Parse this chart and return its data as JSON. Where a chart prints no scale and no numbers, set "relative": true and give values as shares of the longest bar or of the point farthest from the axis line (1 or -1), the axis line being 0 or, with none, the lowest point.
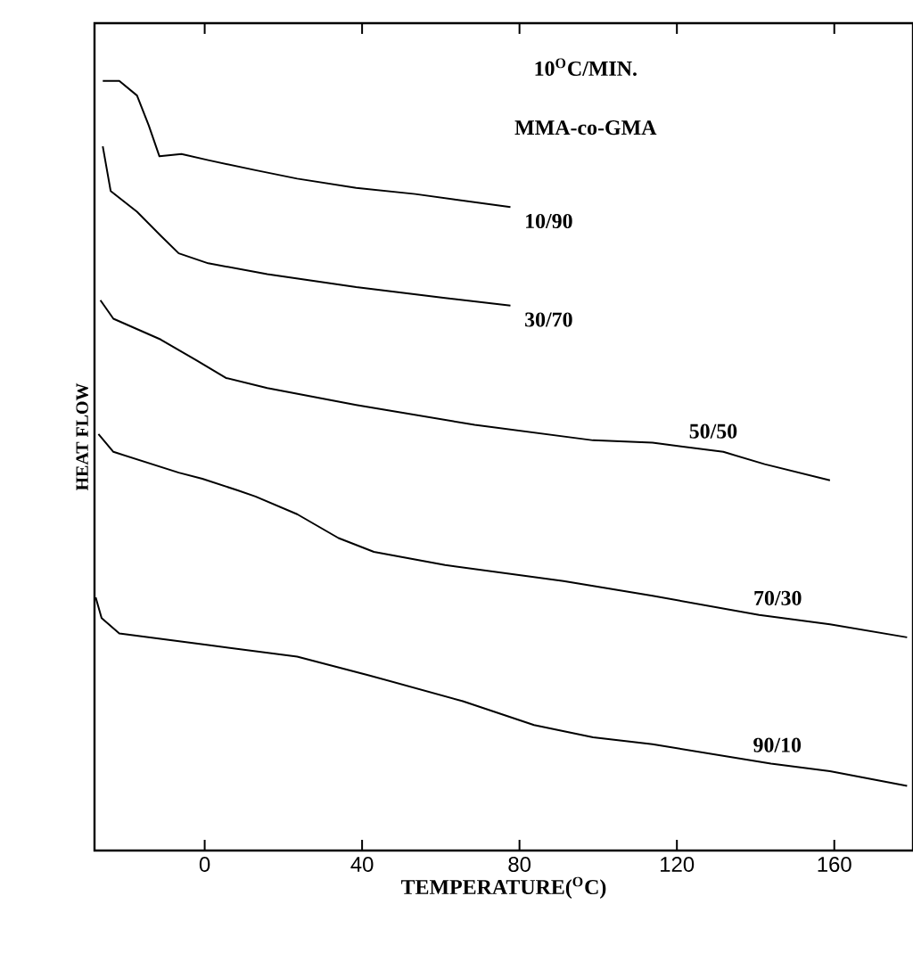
{
  "chart_data": {
    "type": "line",
    "relative": true,
    "xlabel": "TEMPERATURE($^{O}$C)",
    "ylabel": "HEAT FLOW",
    "annotations": [
      "10$^{O}$C/MIN.",
      "MMA-co-GMA"
    ],
    "xlim": [
      -28,
      180
    ],
    "xticks": [
      0,
      40,
      80,
      120,
      160
    ],
    "legend": false,
    "grid": false,
    "marker": "none",
    "line_style": "solid",
    "series": [
      {
        "name": "10/90",
        "color": "#000000",
        "x": [
          -25.9,
          -21.7,
          -17.2,
          -14.2,
          -11.5,
          -5.9,
          0.9,
          12.9,
          23.5,
          38.5,
          53.5,
          77.7
        ],
        "values": [
          1.0,
          1.0,
          0.981,
          0.942,
          0.902,
          0.905,
          0.897,
          0.884,
          0.873,
          0.861,
          0.853,
          0.836
        ]
      },
      {
        "name": "30/70",
        "color": "#000000",
        "x": [
          -25.9,
          -23.9,
          -17.2,
          -11.2,
          -6.6,
          0.9,
          15.9,
          38.5,
          61.1,
          77.7
        ],
        "values": [
          0.915,
          0.857,
          0.83,
          0.799,
          0.776,
          0.763,
          0.749,
          0.732,
          0.718,
          0.708
        ]
      },
      {
        "name": "50/50",
        "color": "#000000",
        "x": [
          -26.5,
          -23.2,
          -11.2,
          -2.1,
          5.4,
          15.9,
          38.5,
          68.6,
          98.7,
          113.8,
          131.8,
          142.3,
          158.9
        ],
        "values": [
          0.715,
          0.691,
          0.664,
          0.637,
          0.614,
          0.601,
          0.579,
          0.553,
          0.533,
          0.53,
          0.518,
          0.502,
          0.481
        ]
      },
      {
        "name": "70/30",
        "color": "#000000",
        "x": [
          -27.0,
          -23.2,
          -6.6,
          -0.6,
          8.4,
          12.9,
          23.5,
          34.0,
          43.0,
          61.1,
          91.2,
          113.8,
          140.9,
          158.9,
          178.5
        ],
        "values": [
          0.541,
          0.518,
          0.491,
          0.483,
          0.468,
          0.46,
          0.437,
          0.406,
          0.388,
          0.371,
          0.35,
          0.331,
          0.306,
          0.294,
          0.277
        ]
      },
      {
        "name": "90/10",
        "color": "#000000",
        "x": [
          -27.7,
          -26.2,
          -21.7,
          0.9,
          23.5,
          41.5,
          65.6,
          83.7,
          98.7,
          113.8,
          143.9,
          158.9,
          178.5
        ],
        "values": [
          0.329,
          0.302,
          0.282,
          0.267,
          0.252,
          0.228,
          0.194,
          0.163,
          0.147,
          0.138,
          0.113,
          0.103,
          0.084
        ]
      }
    ]
  }
}
